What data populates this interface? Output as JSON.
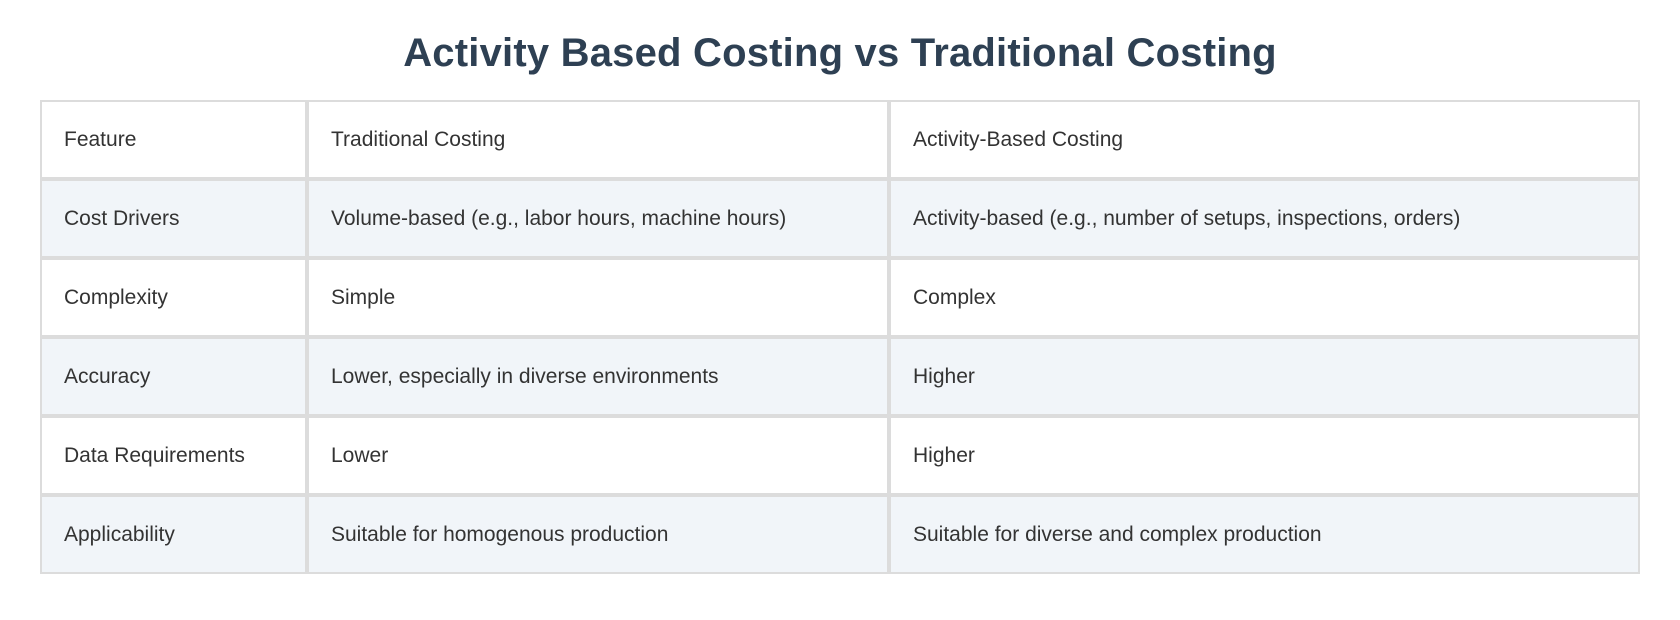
{
  "page": {
    "title": "Activity Based Costing vs Traditional Costing"
  },
  "colors": {
    "title_text": "#2e4053",
    "cell_text": "#333333",
    "row_default_bg": "#ffffff",
    "row_alternate_bg": "#f1f5f9",
    "grid_line": "#dcdcdc",
    "page_bg": "#ffffff"
  },
  "chart_data": {
    "type": "table",
    "title": "Activity Based Costing vs Traditional Costing",
    "columns": [
      "Feature",
      "Traditional Costing",
      "Activity-Based Costing"
    ],
    "rows": [
      [
        "Cost Drivers",
        "Volume-based (e.g., labor hours, machine hours)",
        "Activity-based (e.g., number of setups, inspections, orders)"
      ],
      [
        "Complexity",
        "Simple",
        "Complex"
      ],
      [
        "Accuracy",
        "Lower, especially in diverse environments",
        "Higher"
      ],
      [
        "Data Requirements",
        "Lower",
        "Higher"
      ],
      [
        "Applicability",
        "Suitable for homogenous production",
        "Suitable for diverse and complex production"
      ]
    ],
    "layout": {
      "legend": "none",
      "grid": true,
      "alternating_row_colors": true,
      "header_emphasis": "none",
      "column_width_ratio": [
        0.165,
        0.362,
        0.473
      ]
    }
  },
  "table": {
    "rows": [
      {
        "cells": [
          "Feature",
          "Traditional Costing",
          "Activity-Based Costing"
        ]
      },
      {
        "cells": [
          "Cost Drivers",
          "Volume-based (e.g., labor hours, machine hours)",
          "Activity-based (e.g., number of setups, inspections, orders)"
        ]
      },
      {
        "cells": [
          "Complexity",
          "Simple",
          "Complex"
        ]
      },
      {
        "cells": [
          "Accuracy",
          "Lower, especially in diverse environments",
          "Higher"
        ]
      },
      {
        "cells": [
          "Data Requirements",
          "Lower",
          "Higher"
        ]
      },
      {
        "cells": [
          "Applicability",
          "Suitable for homogenous production",
          "Suitable for diverse and complex production"
        ]
      }
    ]
  }
}
